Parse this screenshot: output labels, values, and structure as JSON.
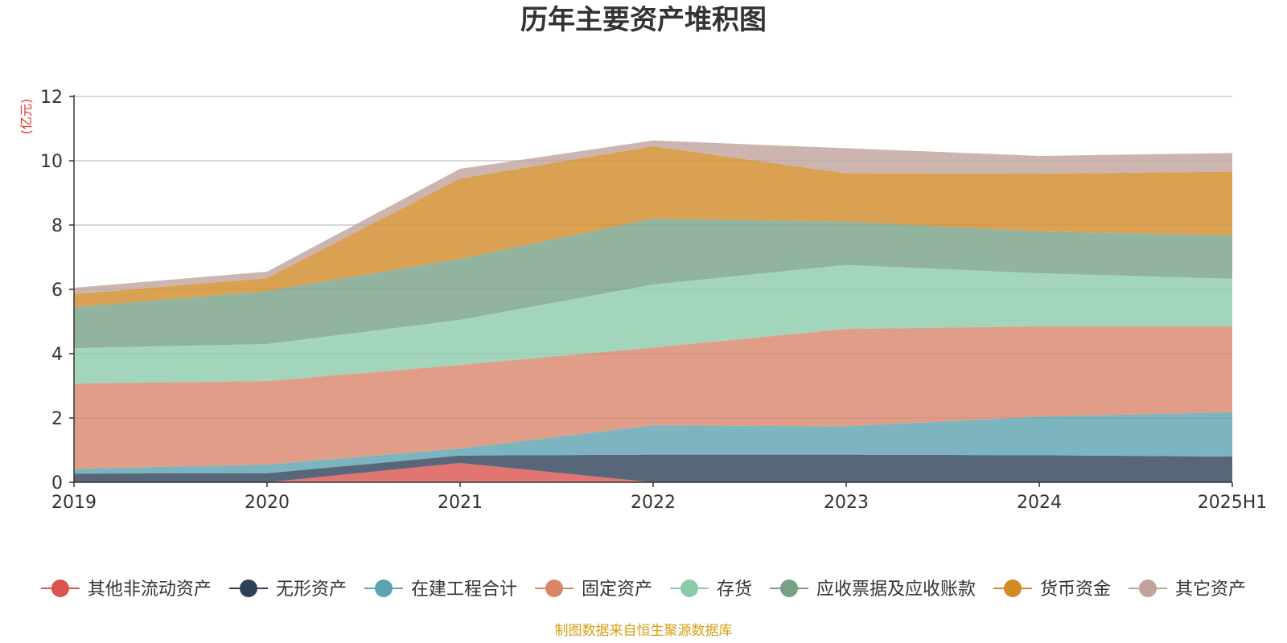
{
  "chart_data": {
    "type": "area",
    "stacked": true,
    "title": "历年主要资产堆积图",
    "unit_label": "(亿元)",
    "categories": [
      "2019",
      "2020",
      "2021",
      "2022",
      "2023",
      "2024",
      "2025H1"
    ],
    "ylim": [
      0,
      12
    ],
    "yticks": [
      0,
      2,
      4,
      6,
      8,
      10,
      12
    ],
    "grid": true,
    "legend_position": "bottom",
    "series": [
      {
        "name": "其他非流动资产",
        "color": "#d9534f",
        "values": [
          0.0,
          0.0,
          0.6,
          0.0,
          0.0,
          0.0,
          0.0
        ]
      },
      {
        "name": "无形资产",
        "color": "#2e4057",
        "values": [
          0.27,
          0.28,
          0.23,
          0.86,
          0.86,
          0.84,
          0.8
        ]
      },
      {
        "name": "在建工程合计",
        "color": "#5ba3b0",
        "values": [
          0.15,
          0.27,
          0.22,
          0.91,
          0.88,
          1.2,
          1.38
        ]
      },
      {
        "name": "固定资产",
        "color": "#d8866a",
        "values": [
          2.65,
          2.6,
          2.6,
          2.42,
          3.03,
          2.81,
          2.67
        ]
      },
      {
        "name": "存货",
        "color": "#8ccaac",
        "values": [
          1.1,
          1.15,
          1.4,
          1.96,
          1.99,
          1.65,
          1.48
        ]
      },
      {
        "name": "应收票据及应收账款",
        "color": "#77a086",
        "values": [
          1.28,
          1.65,
          1.9,
          2.05,
          1.35,
          1.3,
          1.35
        ]
      },
      {
        "name": "货币资金",
        "color": "#d08a26",
        "values": [
          0.4,
          0.4,
          2.5,
          2.25,
          1.5,
          1.8,
          1.98
        ]
      },
      {
        "name": "其它资产",
        "color": "#bfa39b",
        "values": [
          0.2,
          0.2,
          0.3,
          0.18,
          0.78,
          0.55,
          0.58
        ]
      }
    ]
  },
  "footer": {
    "source_text": "制图数据来自恒生聚源数据库"
  }
}
